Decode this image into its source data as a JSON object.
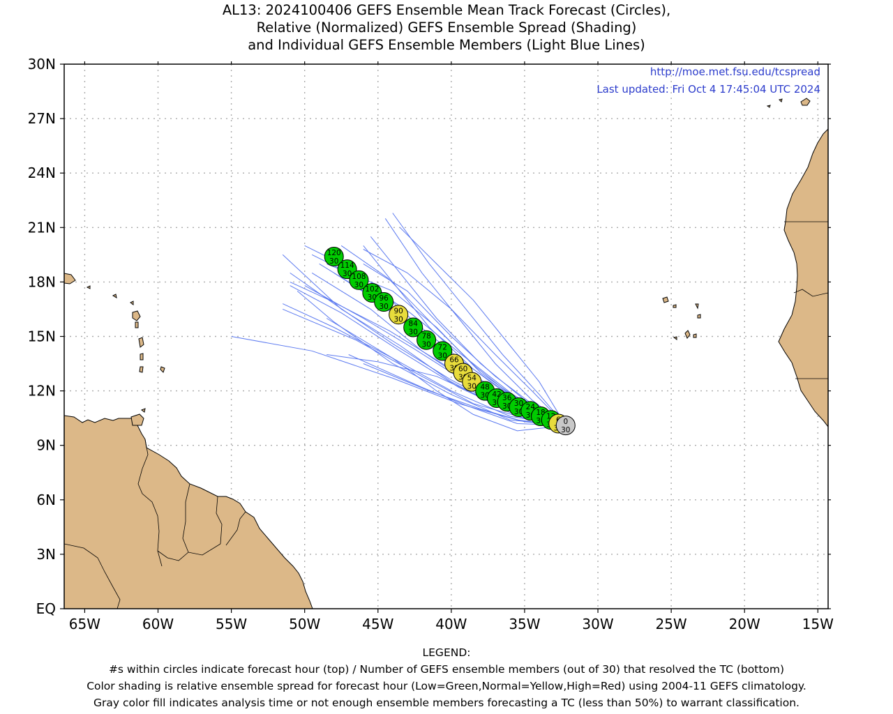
{
  "title": {
    "line1": "AL13: 2024100406 GEFS Ensemble Mean Track Forecast (Circles),",
    "line2": "Relative (Normalized) GEFS Ensemble Spread (Shading)",
    "line3": "and Individual GEFS Ensemble Members (Light Blue Lines)"
  },
  "map": {
    "url_text": "http://moe.met.fsu.edu/tcspread",
    "updated_text": "Last updated: Fri Oct 4 17:45:04 UTC 2024",
    "lon_ticks": [
      "65W",
      "60W",
      "55W",
      "50W",
      "45W",
      "40W",
      "35W",
      "30W",
      "25W",
      "20W",
      "15W"
    ],
    "lat_ticks": [
      "EQ",
      "3N",
      "6N",
      "9N",
      "12N",
      "15N",
      "18N",
      "21N",
      "24N",
      "27N",
      "30N"
    ],
    "colors": {
      "land": "#dcb888",
      "ocean": "#ffffff",
      "member_lines": "#5c7af0",
      "green": "#00cc00",
      "yellow": "#e8dc3c",
      "gray": "#c8c8c8",
      "link_text": "#2c3ccc"
    }
  },
  "track": [
    {
      "hour": "0",
      "members": "30",
      "lon": -32.2,
      "lat": 10.1,
      "spread": "gray"
    },
    {
      "hour": "6",
      "members": "30",
      "lon": -32.7,
      "lat": 10.2,
      "spread": "yellow"
    },
    {
      "hour": "12",
      "members": "30",
      "lon": -33.2,
      "lat": 10.4,
      "spread": "green"
    },
    {
      "hour": "18",
      "members": "30",
      "lon": -33.9,
      "lat": 10.6,
      "spread": "green"
    },
    {
      "hour": "24",
      "members": "30",
      "lon": -34.6,
      "lat": 10.9,
      "spread": "green"
    },
    {
      "hour": "30",
      "members": "30",
      "lon": -35.4,
      "lat": 11.1,
      "spread": "green"
    },
    {
      "hour": "36",
      "members": "30",
      "lon": -36.2,
      "lat": 11.4,
      "spread": "green"
    },
    {
      "hour": "42",
      "members": "30",
      "lon": -36.9,
      "lat": 11.6,
      "spread": "green"
    },
    {
      "hour": "48",
      "members": "30",
      "lon": -37.7,
      "lat": 12.0,
      "spread": "green"
    },
    {
      "hour": "54",
      "members": "30",
      "lon": -38.6,
      "lat": 12.5,
      "spread": "yellow"
    },
    {
      "hour": "60",
      "members": "30",
      "lon": -39.2,
      "lat": 13.0,
      "spread": "yellow"
    },
    {
      "hour": "66",
      "members": "30",
      "lon": -39.8,
      "lat": 13.5,
      "spread": "yellow"
    },
    {
      "hour": "72",
      "members": "30",
      "lon": -40.6,
      "lat": 14.2,
      "spread": "green"
    },
    {
      "hour": "78",
      "members": "30",
      "lon": -41.7,
      "lat": 14.8,
      "spread": "green"
    },
    {
      "hour": "84",
      "members": "30",
      "lon": -42.6,
      "lat": 15.5,
      "spread": "green"
    },
    {
      "hour": "90",
      "members": "30",
      "lon": -43.6,
      "lat": 16.2,
      "spread": "yellow"
    },
    {
      "hour": "96",
      "members": "30",
      "lon": -44.6,
      "lat": 16.9,
      "spread": "green"
    },
    {
      "hour": "102",
      "members": "30",
      "lon": -45.4,
      "lat": 17.4,
      "spread": "green"
    },
    {
      "hour": "108",
      "members": "30",
      "lon": -46.3,
      "lat": 18.1,
      "spread": "green"
    },
    {
      "hour": "114",
      "members": "30",
      "lon": -47.1,
      "lat": 18.7,
      "spread": "green"
    },
    {
      "hour": "120",
      "members": "30",
      "lon": -48.0,
      "lat": 19.4,
      "spread": "green"
    }
  ],
  "members": [
    [
      [
        -32.2,
        10.1
      ],
      [
        -35,
        10.5
      ],
      [
        -38.5,
        11.3
      ],
      [
        -42,
        12.8
      ],
      [
        -46.5,
        14.8
      ],
      [
        -51.5,
        16.5
      ]
    ],
    [
      [
        -32.2,
        10.1
      ],
      [
        -35.5,
        10.4
      ],
      [
        -39.5,
        11.3
      ],
      [
        -44,
        12.7
      ],
      [
        -49.5,
        14.2
      ],
      [
        -55,
        15
      ]
    ],
    [
      [
        -32.2,
        10.1
      ],
      [
        -35.5,
        10.2
      ],
      [
        -39,
        11.2
      ],
      [
        -42,
        12.2
      ],
      [
        -47,
        14
      ]
    ],
    [
      [
        -32.2,
        10.1
      ],
      [
        -35.5,
        9.8
      ],
      [
        -38.5,
        10.7
      ],
      [
        -41,
        12
      ],
      [
        -44,
        13.8
      ],
      [
        -48.5,
        16
      ]
    ],
    [
      [
        -32.2,
        10.1
      ],
      [
        -36,
        10.8
      ],
      [
        -40,
        12.5
      ],
      [
        -43.5,
        14.5
      ],
      [
        -47.5,
        16.5
      ],
      [
        -51.5,
        19.5
      ]
    ],
    [
      [
        -32.2,
        10.1
      ],
      [
        -36,
        11
      ],
      [
        -39.5,
        12.8
      ],
      [
        -42,
        15
      ],
      [
        -45,
        17.2
      ],
      [
        -48,
        19.2
      ],
      [
        -50,
        20
      ]
    ],
    [
      [
        -32.2,
        10.1
      ],
      [
        -35.5,
        11.5
      ],
      [
        -38.5,
        13.2
      ],
      [
        -41.5,
        15.5
      ],
      [
        -44,
        18
      ],
      [
        -46,
        20
      ]
    ],
    [
      [
        -32.2,
        10.1
      ],
      [
        -34.5,
        11.5
      ],
      [
        -37,
        13.5
      ],
      [
        -39.5,
        16
      ],
      [
        -42,
        18.5
      ],
      [
        -44.5,
        21.5
      ]
    ],
    [
      [
        -32.2,
        10.1
      ],
      [
        -34,
        11.8
      ],
      [
        -36.5,
        14
      ],
      [
        -39,
        16.5
      ],
      [
        -41.5,
        19
      ],
      [
        -44,
        21.8
      ]
    ],
    [
      [
        -32.2,
        10.1
      ],
      [
        -34,
        12.5
      ],
      [
        -36,
        14.5
      ],
      [
        -38.5,
        17
      ],
      [
        -41,
        19
      ],
      [
        -43.5,
        21
      ]
    ],
    [
      [
        -32.2,
        10.1
      ],
      [
        -34.8,
        11.2
      ],
      [
        -38,
        13
      ],
      [
        -41,
        15.5
      ],
      [
        -44,
        17.5
      ],
      [
        -48.5,
        19
      ]
    ],
    [
      [
        -32.2,
        10.1
      ],
      [
        -35.5,
        10.9
      ],
      [
        -39,
        12.5
      ],
      [
        -42.5,
        14.3
      ],
      [
        -46,
        16
      ],
      [
        -50,
        17.8
      ]
    ],
    [
      [
        -32.2,
        10.1
      ],
      [
        -36,
        10.6
      ],
      [
        -40,
        12
      ],
      [
        -44,
        13.8
      ],
      [
        -48,
        15.5
      ],
      [
        -51.5,
        16.8
      ]
    ],
    [
      [
        -32.2,
        10.1
      ],
      [
        -35,
        11.5
      ],
      [
        -38,
        13.5
      ],
      [
        -41,
        16
      ],
      [
        -43.5,
        18.5
      ],
      [
        -45.5,
        20.5
      ]
    ],
    [
      [
        -32.2,
        10.1
      ],
      [
        -35.5,
        11.2
      ],
      [
        -39,
        13.2
      ],
      [
        -42.5,
        15.5
      ],
      [
        -46,
        17.5
      ],
      [
        -49,
        19
      ]
    ],
    [
      [
        -32.2,
        10.1
      ],
      [
        -34.5,
        12
      ],
      [
        -37,
        14
      ],
      [
        -40,
        16.5
      ],
      [
        -43,
        18.5
      ],
      [
        -46,
        19.8
      ]
    ],
    [
      [
        -32.2,
        10.1
      ],
      [
        -36,
        10.9
      ],
      [
        -40,
        12.6
      ],
      [
        -44,
        14.6
      ],
      [
        -48,
        16.8
      ],
      [
        -51,
        18.5
      ]
    ],
    [
      [
        -32.2,
        10.1
      ],
      [
        -35,
        10.8
      ],
      [
        -38.5,
        12.3
      ],
      [
        -42,
        14.2
      ],
      [
        -45.5,
        16.5
      ],
      [
        -49.5,
        18.5
      ]
    ],
    [
      [
        -32.2,
        10.1
      ],
      [
        -34.5,
        10.6
      ],
      [
        -37.5,
        11.5
      ],
      [
        -41,
        12.8
      ],
      [
        -45,
        13.6
      ],
      [
        -48.5,
        14
      ]
    ],
    [
      [
        -32.2,
        10.1
      ],
      [
        -35,
        10.3
      ],
      [
        -38,
        11
      ],
      [
        -41.5,
        12
      ],
      [
        -46,
        13.5
      ]
    ],
    [
      [
        -32.2,
        10.1
      ],
      [
        -36,
        10.4
      ],
      [
        -40,
        11.8
      ],
      [
        -44,
        13.5
      ],
      [
        -48,
        15.8
      ],
      [
        -50.5,
        17.5
      ]
    ],
    [
      [
        -32.2,
        10.1
      ],
      [
        -35,
        11
      ],
      [
        -38.5,
        12.8
      ],
      [
        -42,
        15
      ],
      [
        -45.5,
        17.2
      ],
      [
        -48,
        18.5
      ]
    ],
    [
      [
        -32.2,
        10.1
      ],
      [
        -34.2,
        11.1
      ],
      [
        -37,
        12.8
      ],
      [
        -40,
        15
      ],
      [
        -43,
        17.5
      ],
      [
        -46,
        19
      ]
    ],
    [
      [
        -32.2,
        10.1
      ],
      [
        -35.5,
        10.7
      ],
      [
        -39.5,
        12.2
      ],
      [
        -43.5,
        14.2
      ],
      [
        -47.5,
        16.3
      ],
      [
        -51,
        17.8
      ]
    ],
    [
      [
        -32.2,
        10.1
      ],
      [
        -34,
        10.8
      ],
      [
        -36.5,
        12
      ],
      [
        -39.5,
        13.8
      ],
      [
        -42.5,
        15.8
      ],
      [
        -45.5,
        18
      ]
    ],
    [
      [
        -32.2,
        10.1
      ],
      [
        -35.2,
        11.3
      ],
      [
        -38.3,
        13.3
      ],
      [
        -41.3,
        15.7
      ],
      [
        -44.3,
        18.2
      ],
      [
        -47.5,
        20
      ]
    ],
    [
      [
        -32.2,
        10.1
      ],
      [
        -36.2,
        11.3
      ],
      [
        -40.2,
        13.3
      ],
      [
        -44.2,
        15.3
      ],
      [
        -48.3,
        17
      ],
      [
        -51,
        18
      ]
    ],
    [
      [
        -32.2,
        10.1
      ],
      [
        -35.8,
        11.8
      ],
      [
        -39.3,
        14
      ],
      [
        -42.8,
        16.3
      ],
      [
        -46.5,
        18.3
      ],
      [
        -49.5,
        19.5
      ]
    ]
  ]
}
